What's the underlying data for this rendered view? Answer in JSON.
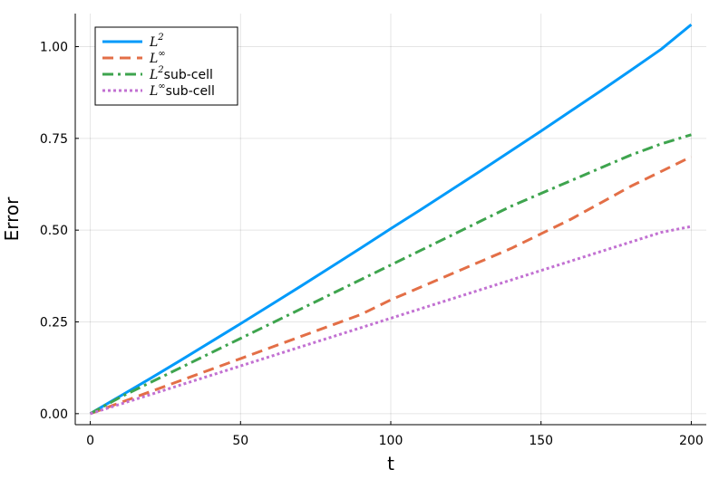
{
  "chart_data": {
    "type": "line",
    "title": "",
    "xlabel": "t",
    "ylabel": "Error",
    "xlim": [
      -5,
      205
    ],
    "ylim": [
      -0.03,
      1.09
    ],
    "xticks": [
      0,
      50,
      100,
      150,
      200
    ],
    "xtick_labels": [
      "0",
      "50",
      "100",
      "150",
      "200"
    ],
    "yticks": [
      0.0,
      0.25,
      0.5,
      0.75,
      1.0
    ],
    "ytick_labels": [
      "0.00",
      "0.25",
      "0.50",
      "0.75",
      "1.00"
    ],
    "grid": true,
    "legend_position": "top-left",
    "series": [
      {
        "name": "L2",
        "legend_main": "L",
        "legend_sup": "2",
        "legend_suffix": "",
        "color": "#009AFA",
        "style": "solid",
        "x": [
          0,
          10,
          20,
          30,
          40,
          50,
          60,
          70,
          80,
          90,
          100,
          110,
          120,
          130,
          140,
          150,
          160,
          170,
          180,
          190,
          200
        ],
        "y": [
          0.0,
          0.048,
          0.096,
          0.145,
          0.195,
          0.245,
          0.296,
          0.347,
          0.399,
          0.451,
          0.504,
          0.556,
          0.609,
          0.662,
          0.716,
          0.77,
          0.825,
          0.88,
          0.936,
          0.993,
          1.06
        ]
      },
      {
        "name": "L∞",
        "legend_main": "L",
        "legend_sup": "∞",
        "legend_suffix": "",
        "color": "#E36F47",
        "style": "dash",
        "x": [
          0,
          10,
          20,
          30,
          40,
          50,
          60,
          70,
          80,
          90,
          100,
          110,
          120,
          130,
          140,
          150,
          160,
          170,
          180,
          190,
          200
        ],
        "y": [
          0.0,
          0.03,
          0.06,
          0.09,
          0.12,
          0.15,
          0.18,
          0.21,
          0.24,
          0.27,
          0.31,
          0.345,
          0.38,
          0.415,
          0.45,
          0.49,
          0.53,
          0.575,
          0.62,
          0.66,
          0.7
        ]
      },
      {
        "name": "L2 sub-cell",
        "legend_main": "L",
        "legend_sup": "2",
        "legend_suffix": "sub-cell",
        "color": "#3EA44E",
        "style": "dashdot",
        "x": [
          0,
          10,
          20,
          30,
          40,
          50,
          60,
          70,
          80,
          90,
          100,
          110,
          120,
          130,
          140,
          150,
          160,
          170,
          180,
          190,
          200
        ],
        "y": [
          0.0,
          0.045,
          0.085,
          0.125,
          0.165,
          0.205,
          0.245,
          0.285,
          0.325,
          0.365,
          0.405,
          0.445,
          0.485,
          0.525,
          0.565,
          0.6,
          0.635,
          0.67,
          0.705,
          0.735,
          0.76
        ]
      },
      {
        "name": "L∞ sub-cell",
        "legend_main": "L",
        "legend_sup": "∞",
        "legend_suffix": "sub-cell",
        "color": "#C271D2",
        "style": "dot",
        "x": [
          0,
          10,
          20,
          30,
          40,
          50,
          60,
          70,
          80,
          90,
          100,
          110,
          120,
          130,
          140,
          150,
          160,
          170,
          180,
          190,
          200
        ],
        "y": [
          0.0,
          0.026,
          0.052,
          0.078,
          0.104,
          0.13,
          0.156,
          0.182,
          0.208,
          0.234,
          0.26,
          0.286,
          0.312,
          0.338,
          0.364,
          0.39,
          0.416,
          0.442,
          0.468,
          0.494,
          0.51
        ]
      }
    ]
  }
}
